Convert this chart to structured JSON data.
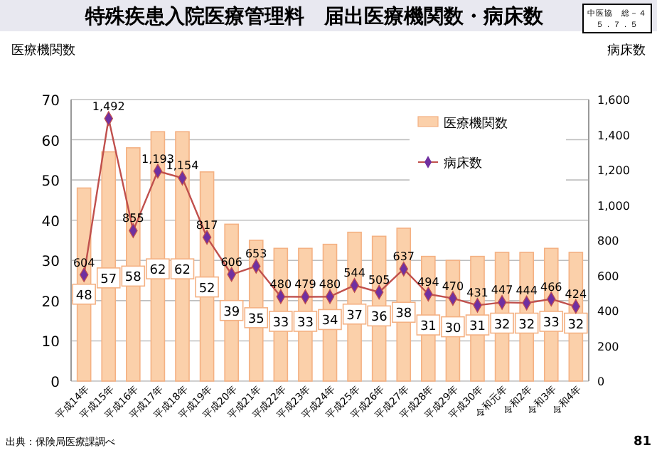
{
  "chart_data": {
    "type": "bar",
    "title": "特殊疾患入院医療管理料　届出医療機関数・病床数",
    "ylabel": "医療機関数",
    "y2label": "病床数",
    "categories": [
      "平成14年",
      "平成15年",
      "平成16年",
      "平成17年",
      "平成18年",
      "平成19年",
      "平成20年",
      "平成21年",
      "平成22年",
      "平成23年",
      "平成24年",
      "平成25年",
      "平成26年",
      "平成27年",
      "平成28年",
      "平成29年",
      "平成30年",
      "令和元年",
      "令和2年",
      "令和3年",
      "令和4年"
    ],
    "series": [
      {
        "name": "医療機関数",
        "color": "#fbd0aa",
        "values": [
          48,
          57,
          58,
          62,
          62,
          52,
          39,
          35,
          33,
          33,
          34,
          37,
          36,
          38,
          31,
          30,
          31,
          32,
          32,
          33,
          32
        ],
        "value_labels": [
          "48",
          "57",
          "58",
          "62",
          "62",
          "52",
          "39",
          "35",
          "33",
          "33",
          "34",
          "37",
          "36",
          "38",
          "31",
          "30",
          "31",
          "32",
          "32",
          "33",
          "32"
        ]
      },
      {
        "name": "病床数",
        "type": "line",
        "axis": "y2",
        "color": "#c0504d",
        "marker": "diamond",
        "values": [
          604,
          1492,
          855,
          1193,
          1154,
          817,
          606,
          653,
          480,
          479,
          480,
          544,
          505,
          637,
          494,
          470,
          431,
          447,
          444,
          466,
          424
        ],
        "value_labels": [
          "604",
          "1,492",
          "855",
          "1,193",
          "1,154",
          "817",
          "606",
          "653",
          "480",
          "479",
          "480",
          "544",
          "505",
          "637",
          "494",
          "470",
          "431",
          "447",
          "444",
          "466",
          "424"
        ]
      }
    ],
    "ylim": [
      0,
      70
    ],
    "yticks": [
      0,
      10,
      20,
      30,
      40,
      50,
      60,
      70
    ],
    "y2lim": [
      0,
      1600
    ],
    "y2ticks": [
      0,
      {
        "value": 200,
        "label": "200"
      },
      {
        "value": 400,
        "label": "400"
      },
      {
        "value": 600,
        "label": "600"
      },
      {
        "value": 800,
        "label": "800"
      },
      {
        "value": 1000,
        "label": "1,000"
      },
      {
        "value": 1200,
        "label": "1,200"
      },
      {
        "value": 1400,
        "label": "1,400"
      },
      {
        "value": 1600,
        "label": "1,600"
      }
    ],
    "grid": "y",
    "legend": "top right",
    "annotations": [
      "中医協　総－４",
      "５．７．５",
      "出典：保険局医療課調べ",
      "81"
    ]
  }
}
